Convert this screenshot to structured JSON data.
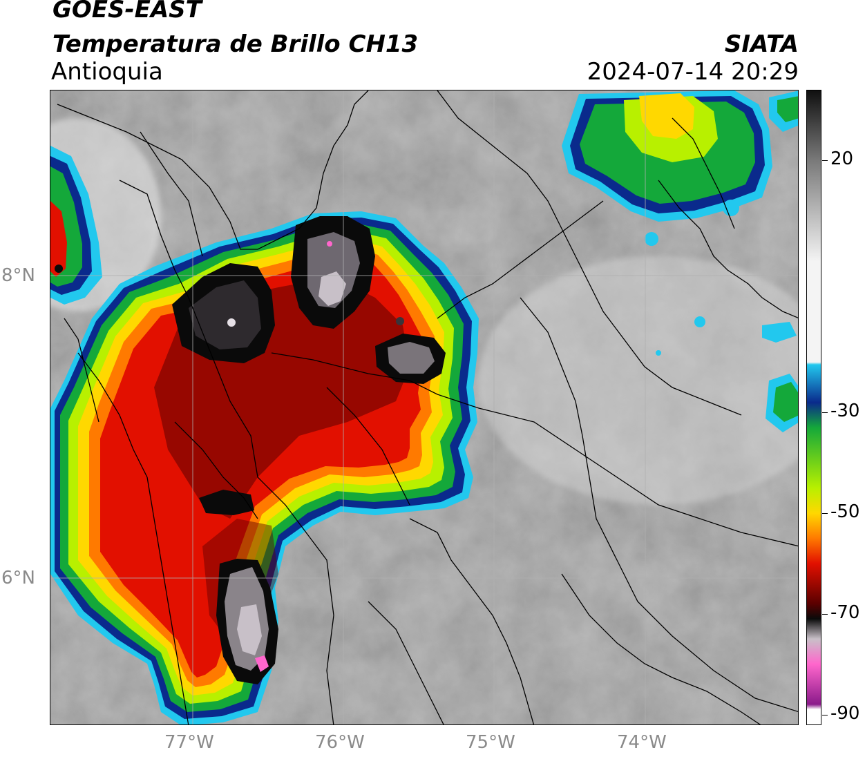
{
  "header": {
    "satellite": "GOES-EAST",
    "product": "Temperatura de Brillo CH13",
    "region": "Antioquia",
    "organization": "SIATA",
    "datetime": "2024-07-14 20:29"
  },
  "axes": {
    "longitude_labels": [
      "77°W",
      "76°W",
      "75°W",
      "74°W"
    ],
    "latitude_labels": [
      "8°N",
      "6°N"
    ]
  },
  "colorbar": {
    "tick_labels": [
      "20",
      "-30",
      "-50",
      "-70",
      "-90"
    ],
    "tick_values": [
      20,
      -30,
      -50,
      -70,
      -90
    ],
    "range": [
      -92,
      34
    ],
    "colors": {
      "warm_top": "#101010",
      "warm_mid": "#7a7a7a",
      "warm_low": "#f4f4f4",
      "cyan": "#22c8ee",
      "navy": "#0a2a8c",
      "green": "#14a83a",
      "lime": "#b8f000",
      "yellow": "#ffd800",
      "orange": "#ff7a00",
      "red": "#e21000",
      "dark_red": "#5a0000",
      "black": "#0a0a0a",
      "light_gray": "#c8c0c8",
      "pink": "#ff66cc",
      "purple": "#8a1a8a",
      "white_floor": "#ffffff"
    }
  }
}
